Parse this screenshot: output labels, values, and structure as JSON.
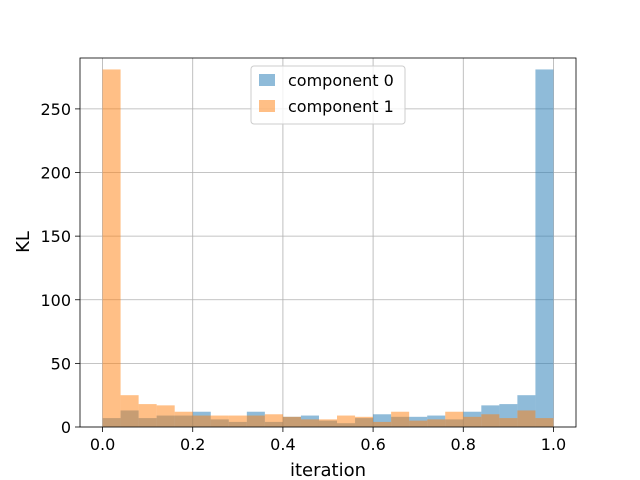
{
  "chart_data": {
    "type": "histogram",
    "title": "",
    "xlabel": "iteration",
    "ylabel": "KL",
    "xlim": [
      -0.05,
      1.05
    ],
    "ylim": [
      0,
      290
    ],
    "xticks": [
      0.0,
      0.2,
      0.4,
      0.6,
      0.8,
      1.0
    ],
    "xtick_labels": [
      "0.0",
      "0.2",
      "0.4",
      "0.6",
      "0.8",
      "1.0"
    ],
    "yticks": [
      0,
      50,
      100,
      150,
      200,
      250
    ],
    "ytick_labels": [
      "0",
      "50",
      "100",
      "150",
      "200",
      "250"
    ],
    "grid": true,
    "legend_position": "top-center",
    "bin_edges": [
      0.0,
      0.04,
      0.08,
      0.12,
      0.16,
      0.2,
      0.24,
      0.28,
      0.32,
      0.36,
      0.4,
      0.44,
      0.48,
      0.52,
      0.56,
      0.6,
      0.64,
      0.68,
      0.72,
      0.76,
      0.8,
      0.84,
      0.88,
      0.92,
      0.96,
      1.0
    ],
    "series": [
      {
        "name": "component 0",
        "color": "#1f77b4",
        "alpha": 0.5,
        "values": [
          7,
          13,
          7,
          9,
          9,
          12,
          6,
          4,
          12,
          4,
          8,
          9,
          5,
          3,
          7,
          10,
          8,
          8,
          9,
          6,
          12,
          17,
          18,
          25,
          281
        ]
      },
      {
        "name": "component 1",
        "color": "#ff7f0e",
        "alpha": 0.5,
        "values": [
          281,
          25,
          18,
          17,
          12,
          9,
          9,
          9,
          9,
          10,
          8,
          6,
          6,
          9,
          8,
          4,
          12,
          5,
          6,
          12,
          8,
          10,
          7,
          13,
          7
        ]
      }
    ]
  }
}
